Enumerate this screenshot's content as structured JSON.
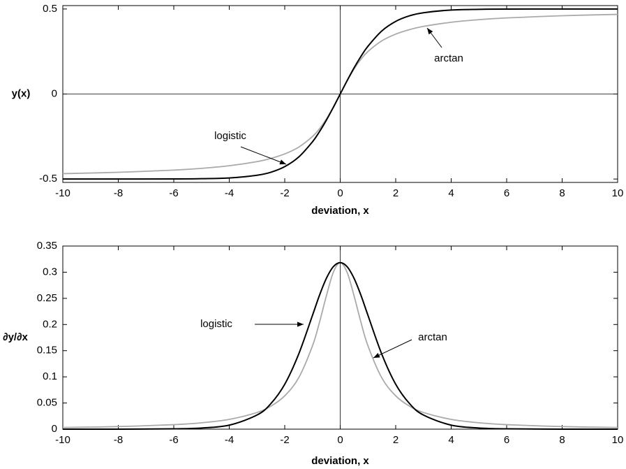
{
  "chart_data": [
    {
      "type": "line",
      "ylabel": "y(x)",
      "xlabel": "deviation, x",
      "xlim": [
        -10,
        10
      ],
      "xticks": [
        -10,
        -8,
        -6,
        -4,
        -2,
        0,
        2,
        4,
        6,
        8,
        10
      ],
      "ylim": [
        -0.52,
        0.52
      ],
      "yticks": [
        -0.5,
        0,
        0.5
      ],
      "annotations": [
        "logistic",
        "arctan"
      ],
      "x": [
        -10,
        -8,
        -6,
        -5,
        -4,
        -3,
        -2.5,
        -2,
        -1.5,
        -1,
        -0.75,
        -0.5,
        -0.25,
        0,
        0.25,
        0.5,
        0.75,
        1,
        1.5,
        2,
        2.5,
        3,
        4,
        5,
        6,
        8,
        10
      ],
      "series": [
        {
          "color": "#000000",
          "values": [
            -0.5,
            -0.5,
            -0.4995,
            -0.498,
            -0.494,
            -0.478,
            -0.46,
            -0.427,
            -0.371,
            -0.281,
            -0.222,
            -0.154,
            -0.0789,
            0,
            0.0789,
            0.154,
            0.222,
            0.281,
            0.371,
            0.427,
            0.46,
            0.478,
            0.494,
            0.498,
            0.4995,
            0.5,
            0.5
          ]
        },
        {
          "color": "#aaaaaa",
          "values": [
            -0.4683,
            -0.4604,
            -0.4474,
            -0.4372,
            -0.422,
            -0.3976,
            -0.3789,
            -0.3524,
            -0.3128,
            -0.25,
            -0.2048,
            -0.1476,
            -0.078,
            0,
            0.078,
            0.1476,
            0.2048,
            0.25,
            0.3128,
            0.3524,
            0.3789,
            0.3976,
            0.422,
            0.4372,
            0.4474,
            0.4604,
            0.4683
          ]
        }
      ]
    },
    {
      "type": "line",
      "ylabel": "∂y/∂x",
      "xlabel": "deviation, x",
      "xlim": [
        -10,
        10
      ],
      "xticks": [
        -10,
        -8,
        -6,
        -4,
        -2,
        0,
        2,
        4,
        6,
        8,
        10
      ],
      "ylim": [
        0,
        0.35
      ],
      "yticks": [
        0,
        0.05,
        0.1,
        0.15,
        0.2,
        0.25,
        0.3,
        0.35
      ],
      "annotations": [
        "logistic",
        "arctan"
      ],
      "x": [
        -10,
        -8,
        -6,
        -5,
        -4,
        -3,
        -2.5,
        -2,
        -1.5,
        -1,
        -0.75,
        -0.5,
        -0.25,
        0,
        0.25,
        0.5,
        0.75,
        1,
        1.5,
        2,
        2.5,
        3,
        4,
        5,
        6,
        8,
        10
      ],
      "series": [
        {
          "color": "#000000",
          "values": [
            0,
            0,
            0.0006,
            0.0022,
            0.0077,
            0.027,
            0.0488,
            0.0858,
            0.1431,
            0.2175,
            0.2555,
            0.2881,
            0.3104,
            0.3183,
            0.3104,
            0.2881,
            0.2555,
            0.2175,
            0.1431,
            0.0858,
            0.0488,
            0.027,
            0.0077,
            0.0022,
            0.0006,
            0,
            0
          ]
        },
        {
          "color": "#aaaaaa",
          "values": [
            0.0032,
            0.0049,
            0.0086,
            0.0122,
            0.0187,
            0.0318,
            0.0439,
            0.0637,
            0.0979,
            0.1592,
            0.2037,
            0.2546,
            0.2996,
            0.3183,
            0.2996,
            0.2546,
            0.2037,
            0.1592,
            0.0979,
            0.0637,
            0.0439,
            0.0318,
            0.0187,
            0.0122,
            0.0086,
            0.0049,
            0.0032
          ]
        }
      ]
    }
  ]
}
